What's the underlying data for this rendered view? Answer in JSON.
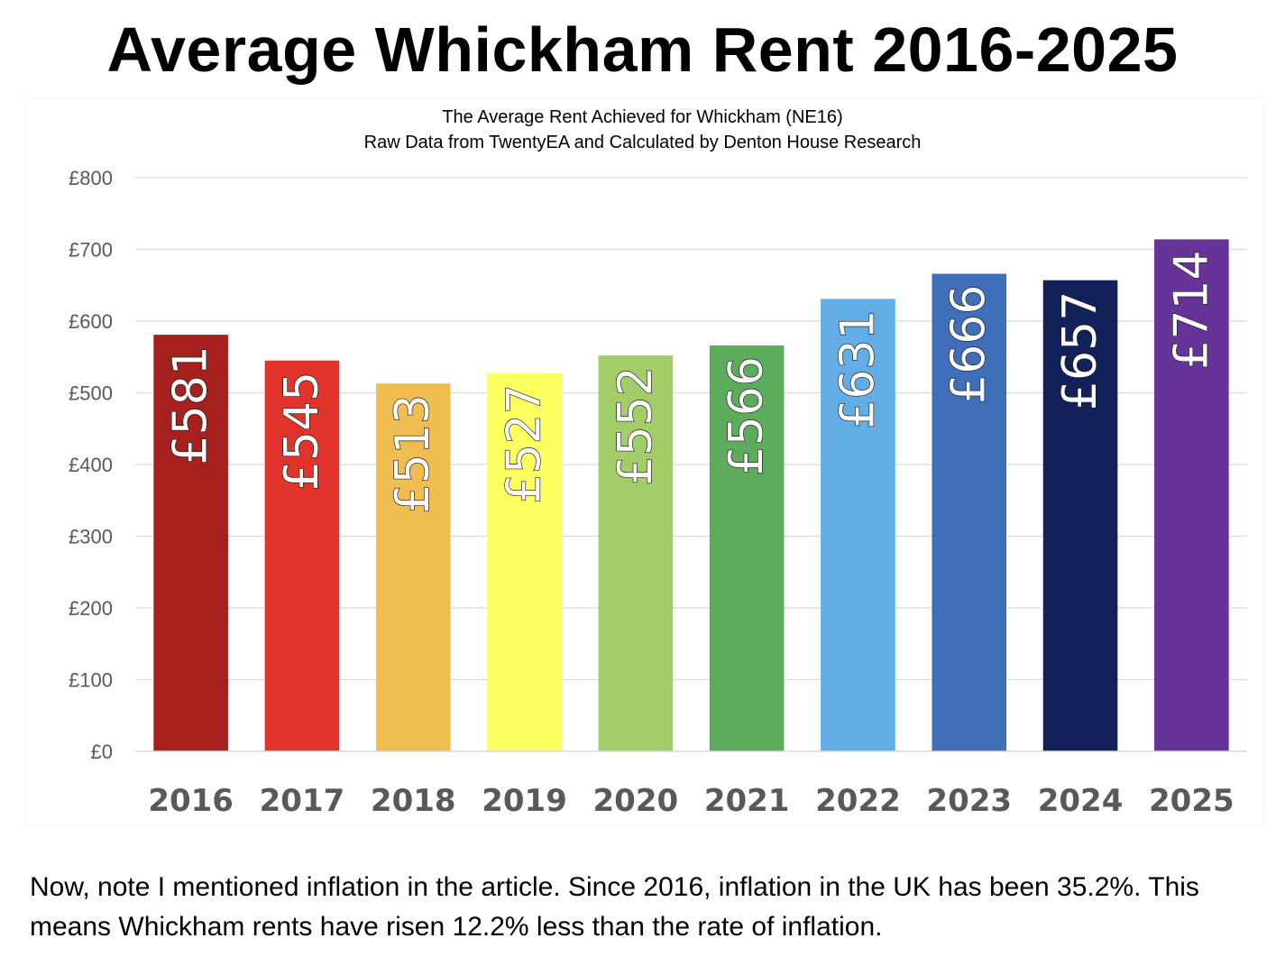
{
  "page": {
    "title": "Average Whickham Rent 2016-2025",
    "subtitle_line1": "The Average Rent Achieved for Whickham (NE16)",
    "subtitle_line2": "Raw Data from TwentyEA and Calculated by Denton House Research",
    "note": "Now, note I mentioned inflation in the article. Since 2016, inflation in the UK has been 35.2%. This means Whickham rents have risen 12.2% less than the rate of inflation."
  },
  "chart_data": {
    "type": "bar",
    "title": "Average Whickham Rent 2016-2025",
    "subtitle": "The Average Rent Achieved for Whickham (NE16) Raw Data from TwentyEA and Calculated by Denton House Research",
    "categories": [
      "2016",
      "2017",
      "2018",
      "2019",
      "2020",
      "2021",
      "2022",
      "2023",
      "2024",
      "2025"
    ],
    "values": [
      581,
      545,
      513,
      527,
      552,
      566,
      631,
      666,
      657,
      714
    ],
    "data_labels": [
      "£581",
      "£545",
      "£513",
      "£527",
      "£552",
      "£566",
      "£631",
      "£666",
      "£657",
      "£714"
    ],
    "bar_colors": [
      "#a6201d",
      "#e0332b",
      "#efbd50",
      "#fdfe5f",
      "#a2cd68",
      "#5dac5d",
      "#62ade5",
      "#3e6fb8",
      "#12215a",
      "#663399"
    ],
    "ylim": [
      0,
      800
    ],
    "yticks": [
      0,
      100,
      200,
      300,
      400,
      500,
      600,
      700,
      800
    ],
    "ytick_labels": [
      "£0",
      "£100",
      "£200",
      "£300",
      "£400",
      "£500",
      "£600",
      "£700",
      "£800"
    ],
    "xlabel": "",
    "ylabel": "",
    "grid": true,
    "legend": "none"
  }
}
